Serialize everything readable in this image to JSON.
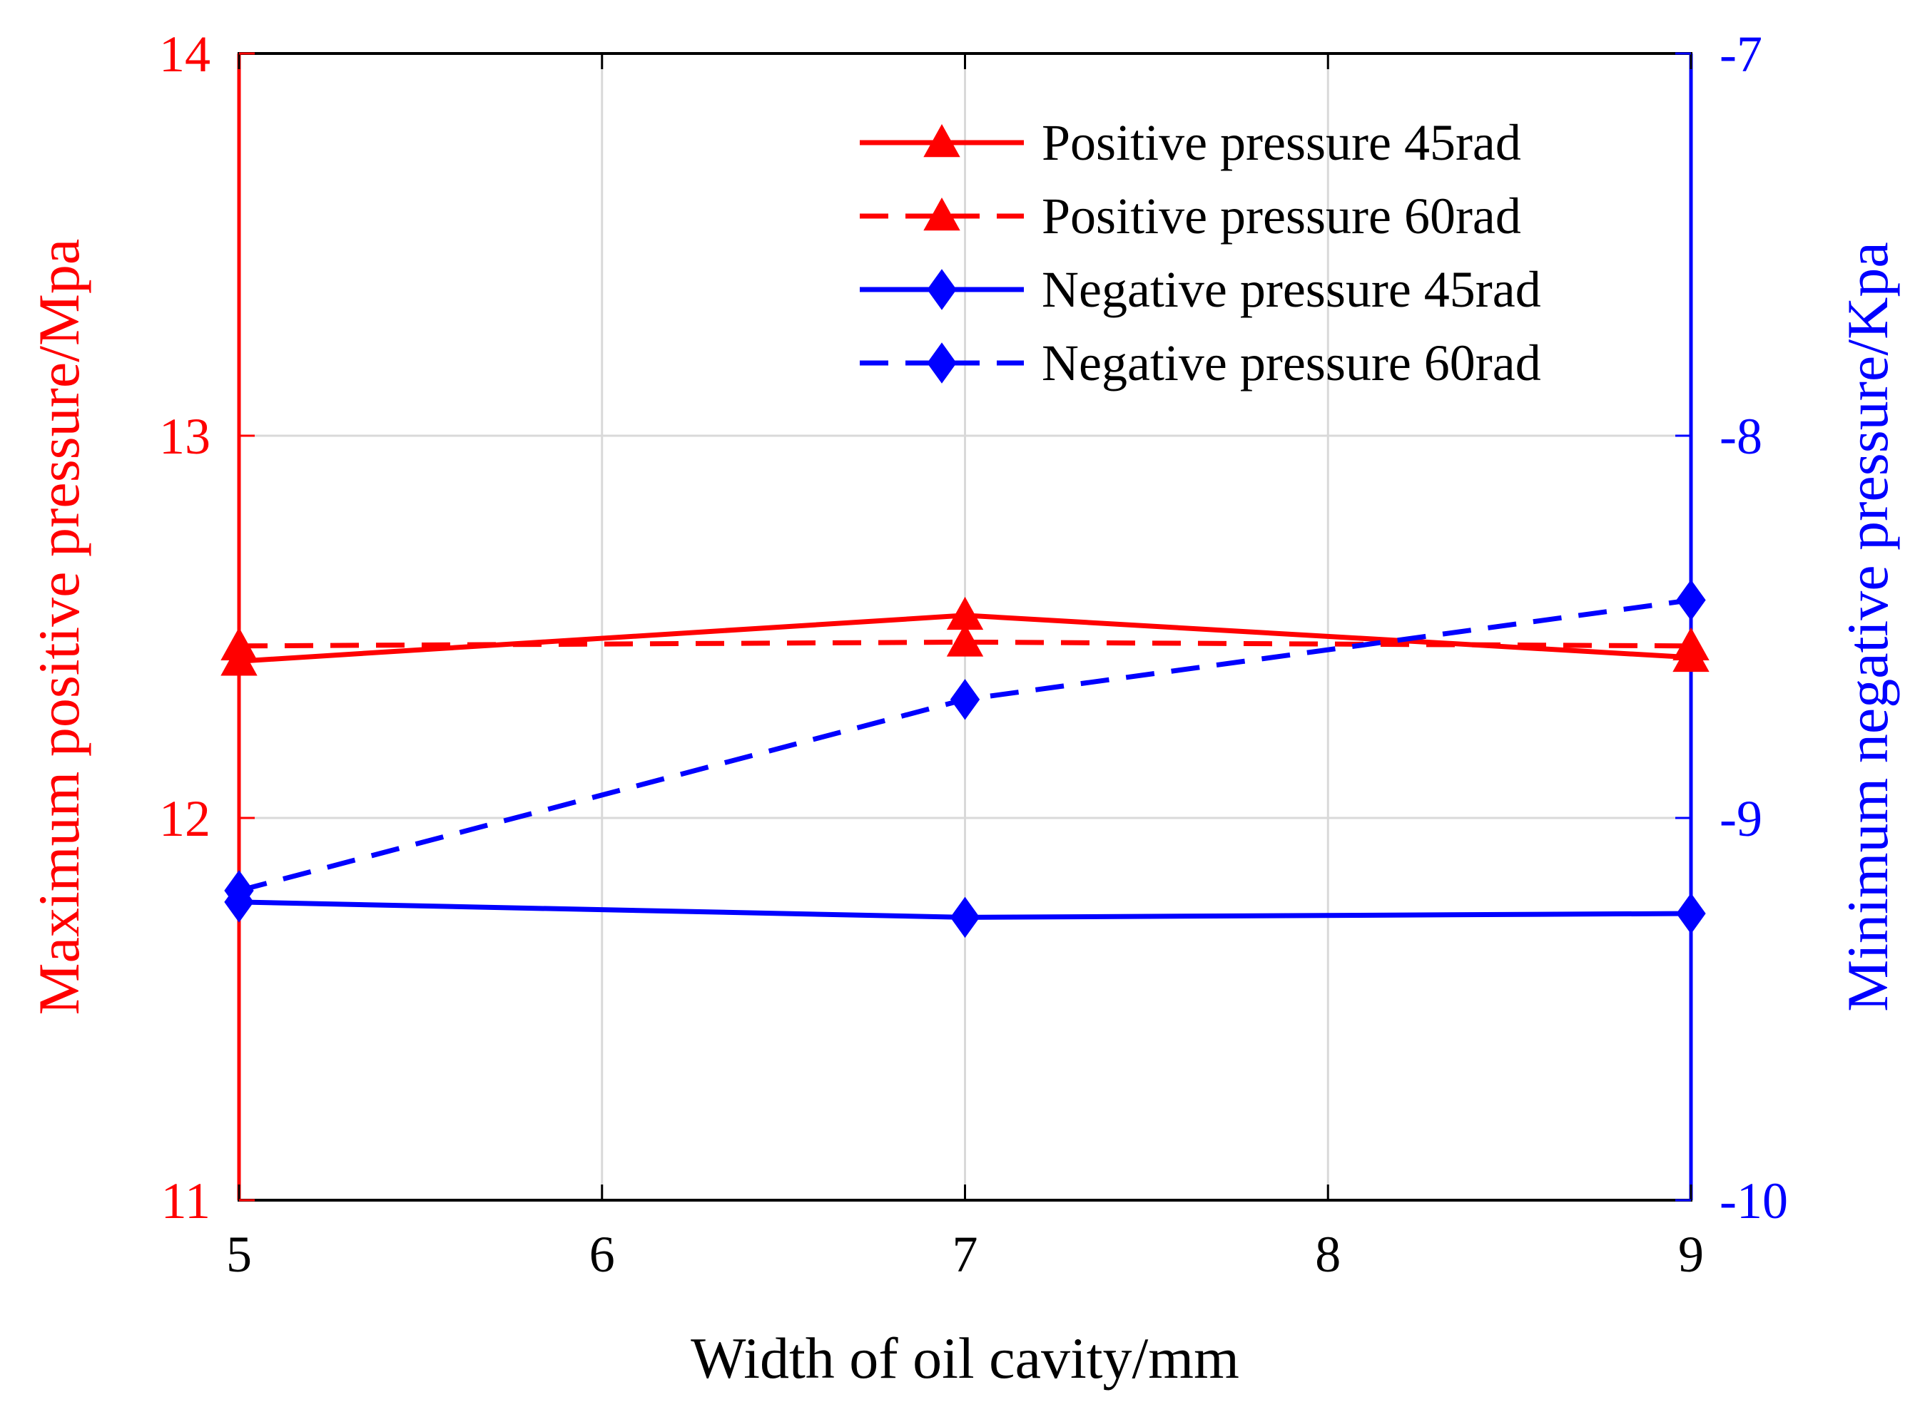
{
  "chart_data": {
    "type": "line",
    "xlabel": "Width of oil cavity/mm",
    "ylabel_left": "Maximum positive pressure/Mpa",
    "ylabel_right": "Minimum negative pressure/Kpa",
    "x": [
      5,
      7,
      9
    ],
    "xlim": [
      5,
      9
    ],
    "xticks": [
      "5",
      "6",
      "7",
      "8",
      "9"
    ],
    "ylim_left": [
      11,
      14
    ],
    "yticks_left": [
      "11",
      "12",
      "13",
      "14"
    ],
    "ylim_right": [
      -10,
      -7
    ],
    "yticks_right": [
      "-10",
      "-9",
      "-8",
      "-7"
    ],
    "grid": true,
    "legend_position": "top-right",
    "series": [
      {
        "name": "Positive pressure 45rad",
        "axis": "left",
        "values": [
          12.41,
          12.53,
          12.42
        ],
        "color": "#ff0000",
        "style": "solid",
        "marker": "triangle"
      },
      {
        "name": "Positive pressure 60rad",
        "axis": "left",
        "values": [
          12.45,
          12.46,
          12.45
        ],
        "color": "#ff0000",
        "style": "dashed",
        "marker": "triangle"
      },
      {
        "name": "Negative pressure 45rad",
        "axis": "right",
        "values": [
          -9.22,
          -9.26,
          -9.25
        ],
        "color": "#0000ff",
        "style": "solid",
        "marker": "diamond"
      },
      {
        "name": "Negative pressure 60rad",
        "axis": "right",
        "values": [
          -9.19,
          -8.69,
          -8.43
        ],
        "color": "#0000ff",
        "style": "dashed",
        "marker": "diamond"
      }
    ],
    "colors": {
      "left_axis": "#ff0000",
      "right_axis": "#0000ff",
      "grid": "#d9d9d9",
      "frame": "#000000"
    }
  }
}
